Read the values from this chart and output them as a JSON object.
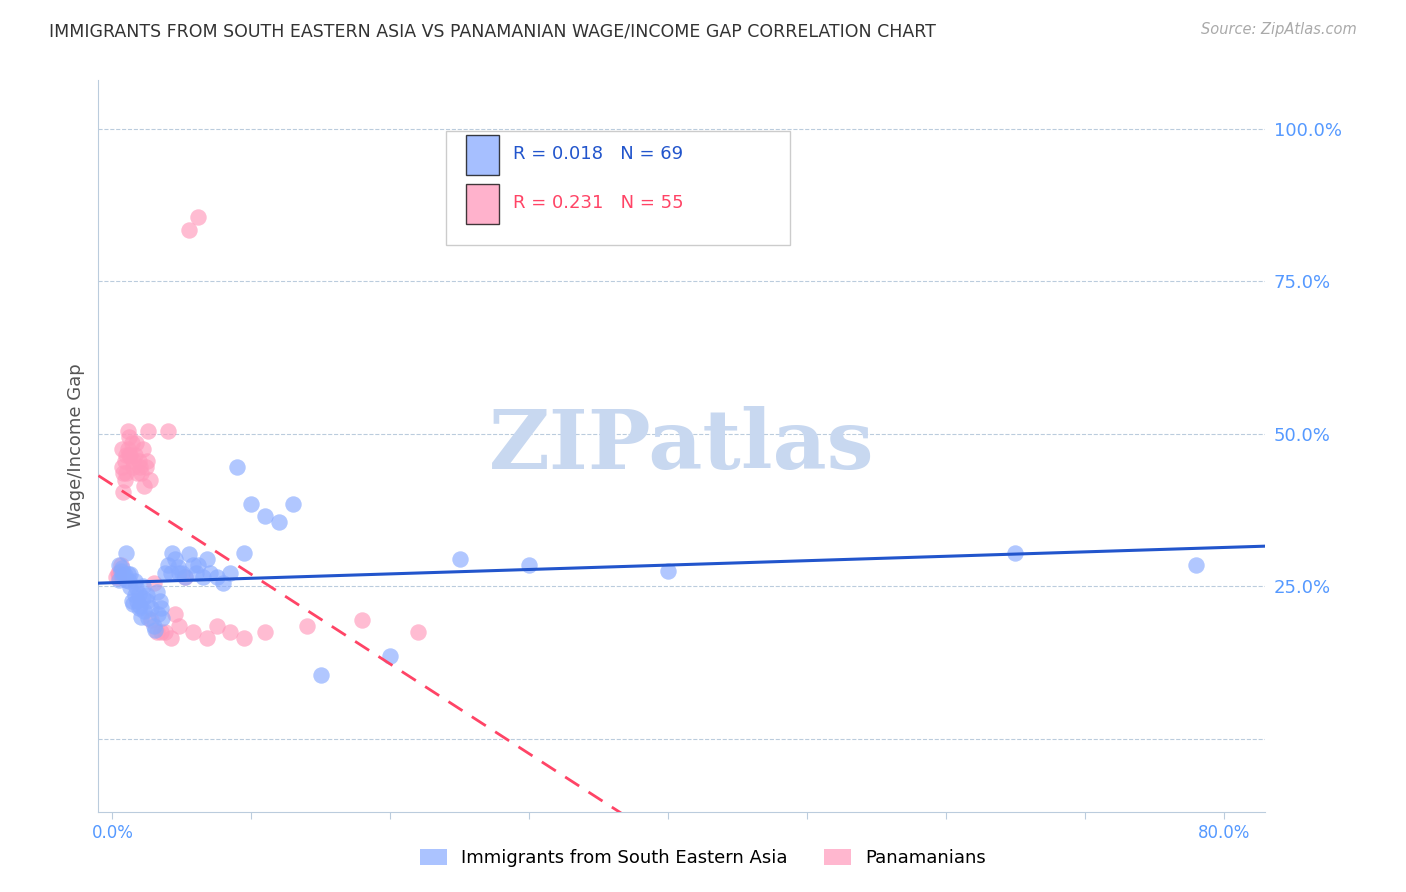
{
  "title": "IMMIGRANTS FROM SOUTH EASTERN ASIA VS PANAMANIAN WAGE/INCOME GAP CORRELATION CHART",
  "source": "Source: ZipAtlas.com",
  "ylabel": "Wage/Income Gap",
  "y_ticks": [
    0.0,
    0.25,
    0.5,
    0.75,
    1.0
  ],
  "y_tick_labels": [
    "",
    "25.0%",
    "50.0%",
    "75.0%",
    "100.0%"
  ],
  "x_ticks": [
    0.0,
    0.1,
    0.2,
    0.3,
    0.4,
    0.5,
    0.6,
    0.7,
    0.8
  ],
  "xlim": [
    -0.01,
    0.83
  ],
  "ylim": [
    -0.12,
    1.08
  ],
  "legend1_label": "Immigrants from South Eastern Asia",
  "legend2_label": "Panamanians",
  "R1": 0.018,
  "N1": 69,
  "R2": 0.231,
  "N2": 55,
  "blue_scatter_color": "#88AAFF",
  "pink_scatter_color": "#FF99BB",
  "blue_line_color": "#2255CC",
  "pink_line_color": "#FF4466",
  "grid_color": "#BBCCDD",
  "title_color": "#333333",
  "right_axis_color": "#5599FF",
  "watermark_color": "#C8D8F0",
  "blue_scatter_x": [
    0.005,
    0.006,
    0.007,
    0.007,
    0.008,
    0.009,
    0.01,
    0.01,
    0.011,
    0.012,
    0.013,
    0.013,
    0.014,
    0.015,
    0.016,
    0.016,
    0.017,
    0.018,
    0.019,
    0.019,
    0.02,
    0.021,
    0.022,
    0.022,
    0.023,
    0.025,
    0.025,
    0.026,
    0.028,
    0.03,
    0.031,
    0.032,
    0.033,
    0.034,
    0.035,
    0.036,
    0.038,
    0.04,
    0.042,
    0.043,
    0.045,
    0.047,
    0.048,
    0.05,
    0.052,
    0.055,
    0.058,
    0.06,
    0.062,
    0.065,
    0.068,
    0.07,
    0.075,
    0.08,
    0.085,
    0.09,
    0.095,
    0.1,
    0.11,
    0.12,
    0.13,
    0.15,
    0.2,
    0.25,
    0.3,
    0.4,
    0.65,
    0.78,
    0.005
  ],
  "blue_scatter_y": [
    0.285,
    0.275,
    0.265,
    0.28,
    0.27,
    0.268,
    0.26,
    0.305,
    0.27,
    0.258,
    0.248,
    0.27,
    0.225,
    0.22,
    0.235,
    0.258,
    0.248,
    0.225,
    0.215,
    0.238,
    0.218,
    0.2,
    0.23,
    0.25,
    0.21,
    0.225,
    0.235,
    0.198,
    0.215,
    0.185,
    0.178,
    0.24,
    0.205,
    0.225,
    0.215,
    0.198,
    0.272,
    0.285,
    0.272,
    0.305,
    0.295,
    0.282,
    0.272,
    0.272,
    0.265,
    0.302,
    0.285,
    0.272,
    0.285,
    0.265,
    0.295,
    0.272,
    0.265,
    0.255,
    0.272,
    0.445,
    0.305,
    0.385,
    0.365,
    0.355,
    0.385,
    0.105,
    0.135,
    0.295,
    0.285,
    0.275,
    0.305,
    0.285,
    0.26
  ],
  "pink_scatter_x": [
    0.003,
    0.004,
    0.005,
    0.005,
    0.006,
    0.006,
    0.007,
    0.007,
    0.008,
    0.008,
    0.009,
    0.009,
    0.01,
    0.01,
    0.011,
    0.011,
    0.012,
    0.012,
    0.013,
    0.014,
    0.015,
    0.015,
    0.016,
    0.017,
    0.018,
    0.019,
    0.02,
    0.021,
    0.022,
    0.023,
    0.024,
    0.025,
    0.026,
    0.027,
    0.028,
    0.03,
    0.032,
    0.035,
    0.038,
    0.04,
    0.042,
    0.045,
    0.048,
    0.052,
    0.055,
    0.058,
    0.062,
    0.068,
    0.075,
    0.085,
    0.095,
    0.11,
    0.14,
    0.18,
    0.22
  ],
  "pink_scatter_y": [
    0.265,
    0.272,
    0.272,
    0.265,
    0.285,
    0.265,
    0.445,
    0.475,
    0.405,
    0.435,
    0.425,
    0.455,
    0.465,
    0.435,
    0.505,
    0.475,
    0.465,
    0.495,
    0.465,
    0.485,
    0.445,
    0.455,
    0.465,
    0.485,
    0.435,
    0.455,
    0.445,
    0.435,
    0.475,
    0.415,
    0.445,
    0.455,
    0.505,
    0.425,
    0.195,
    0.255,
    0.175,
    0.175,
    0.175,
    0.505,
    0.165,
    0.205,
    0.185,
    0.265,
    0.835,
    0.175,
    0.855,
    0.165,
    0.185,
    0.175,
    0.165,
    0.175,
    0.185,
    0.195,
    0.175
  ]
}
